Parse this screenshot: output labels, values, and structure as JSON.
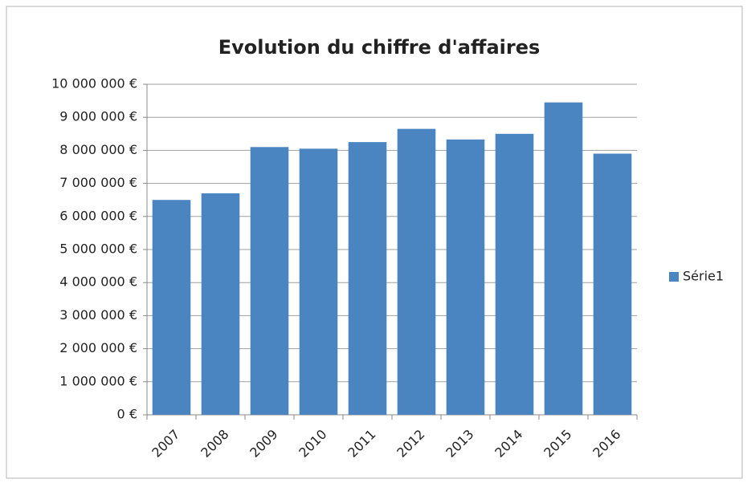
{
  "chart_data": {
    "type": "bar",
    "title": "Evolution du chiffre d'affaires",
    "categories": [
      "2007",
      "2008",
      "2009",
      "2010",
      "2011",
      "2012",
      "2013",
      "2014",
      "2015",
      "2016"
    ],
    "series": [
      {
        "name": "Série1",
        "color": "#4a85c2",
        "values": [
          6500000,
          6700000,
          8100000,
          8050000,
          8250000,
          8650000,
          8330000,
          8500000,
          9450000,
          7900000
        ]
      }
    ],
    "ylim": [
      0,
      10000000
    ],
    "yticks": [
      {
        "value": 0,
        "label": "0 €"
      },
      {
        "value": 1000000,
        "label": "1 000 000 €"
      },
      {
        "value": 2000000,
        "label": "2 000 000 €"
      },
      {
        "value": 3000000,
        "label": "3 000 000 €"
      },
      {
        "value": 4000000,
        "label": "4 000 000 €"
      },
      {
        "value": 5000000,
        "label": "5 000 000 €"
      },
      {
        "value": 6000000,
        "label": "6 000 000 €"
      },
      {
        "value": 7000000,
        "label": "7 000 000 €"
      },
      {
        "value": 8000000,
        "label": "8 000 000 €"
      },
      {
        "value": 9000000,
        "label": "9 000 000 €"
      },
      {
        "value": 10000000,
        "label": "10 000 000 €"
      }
    ],
    "grid": true,
    "legend": "right"
  }
}
